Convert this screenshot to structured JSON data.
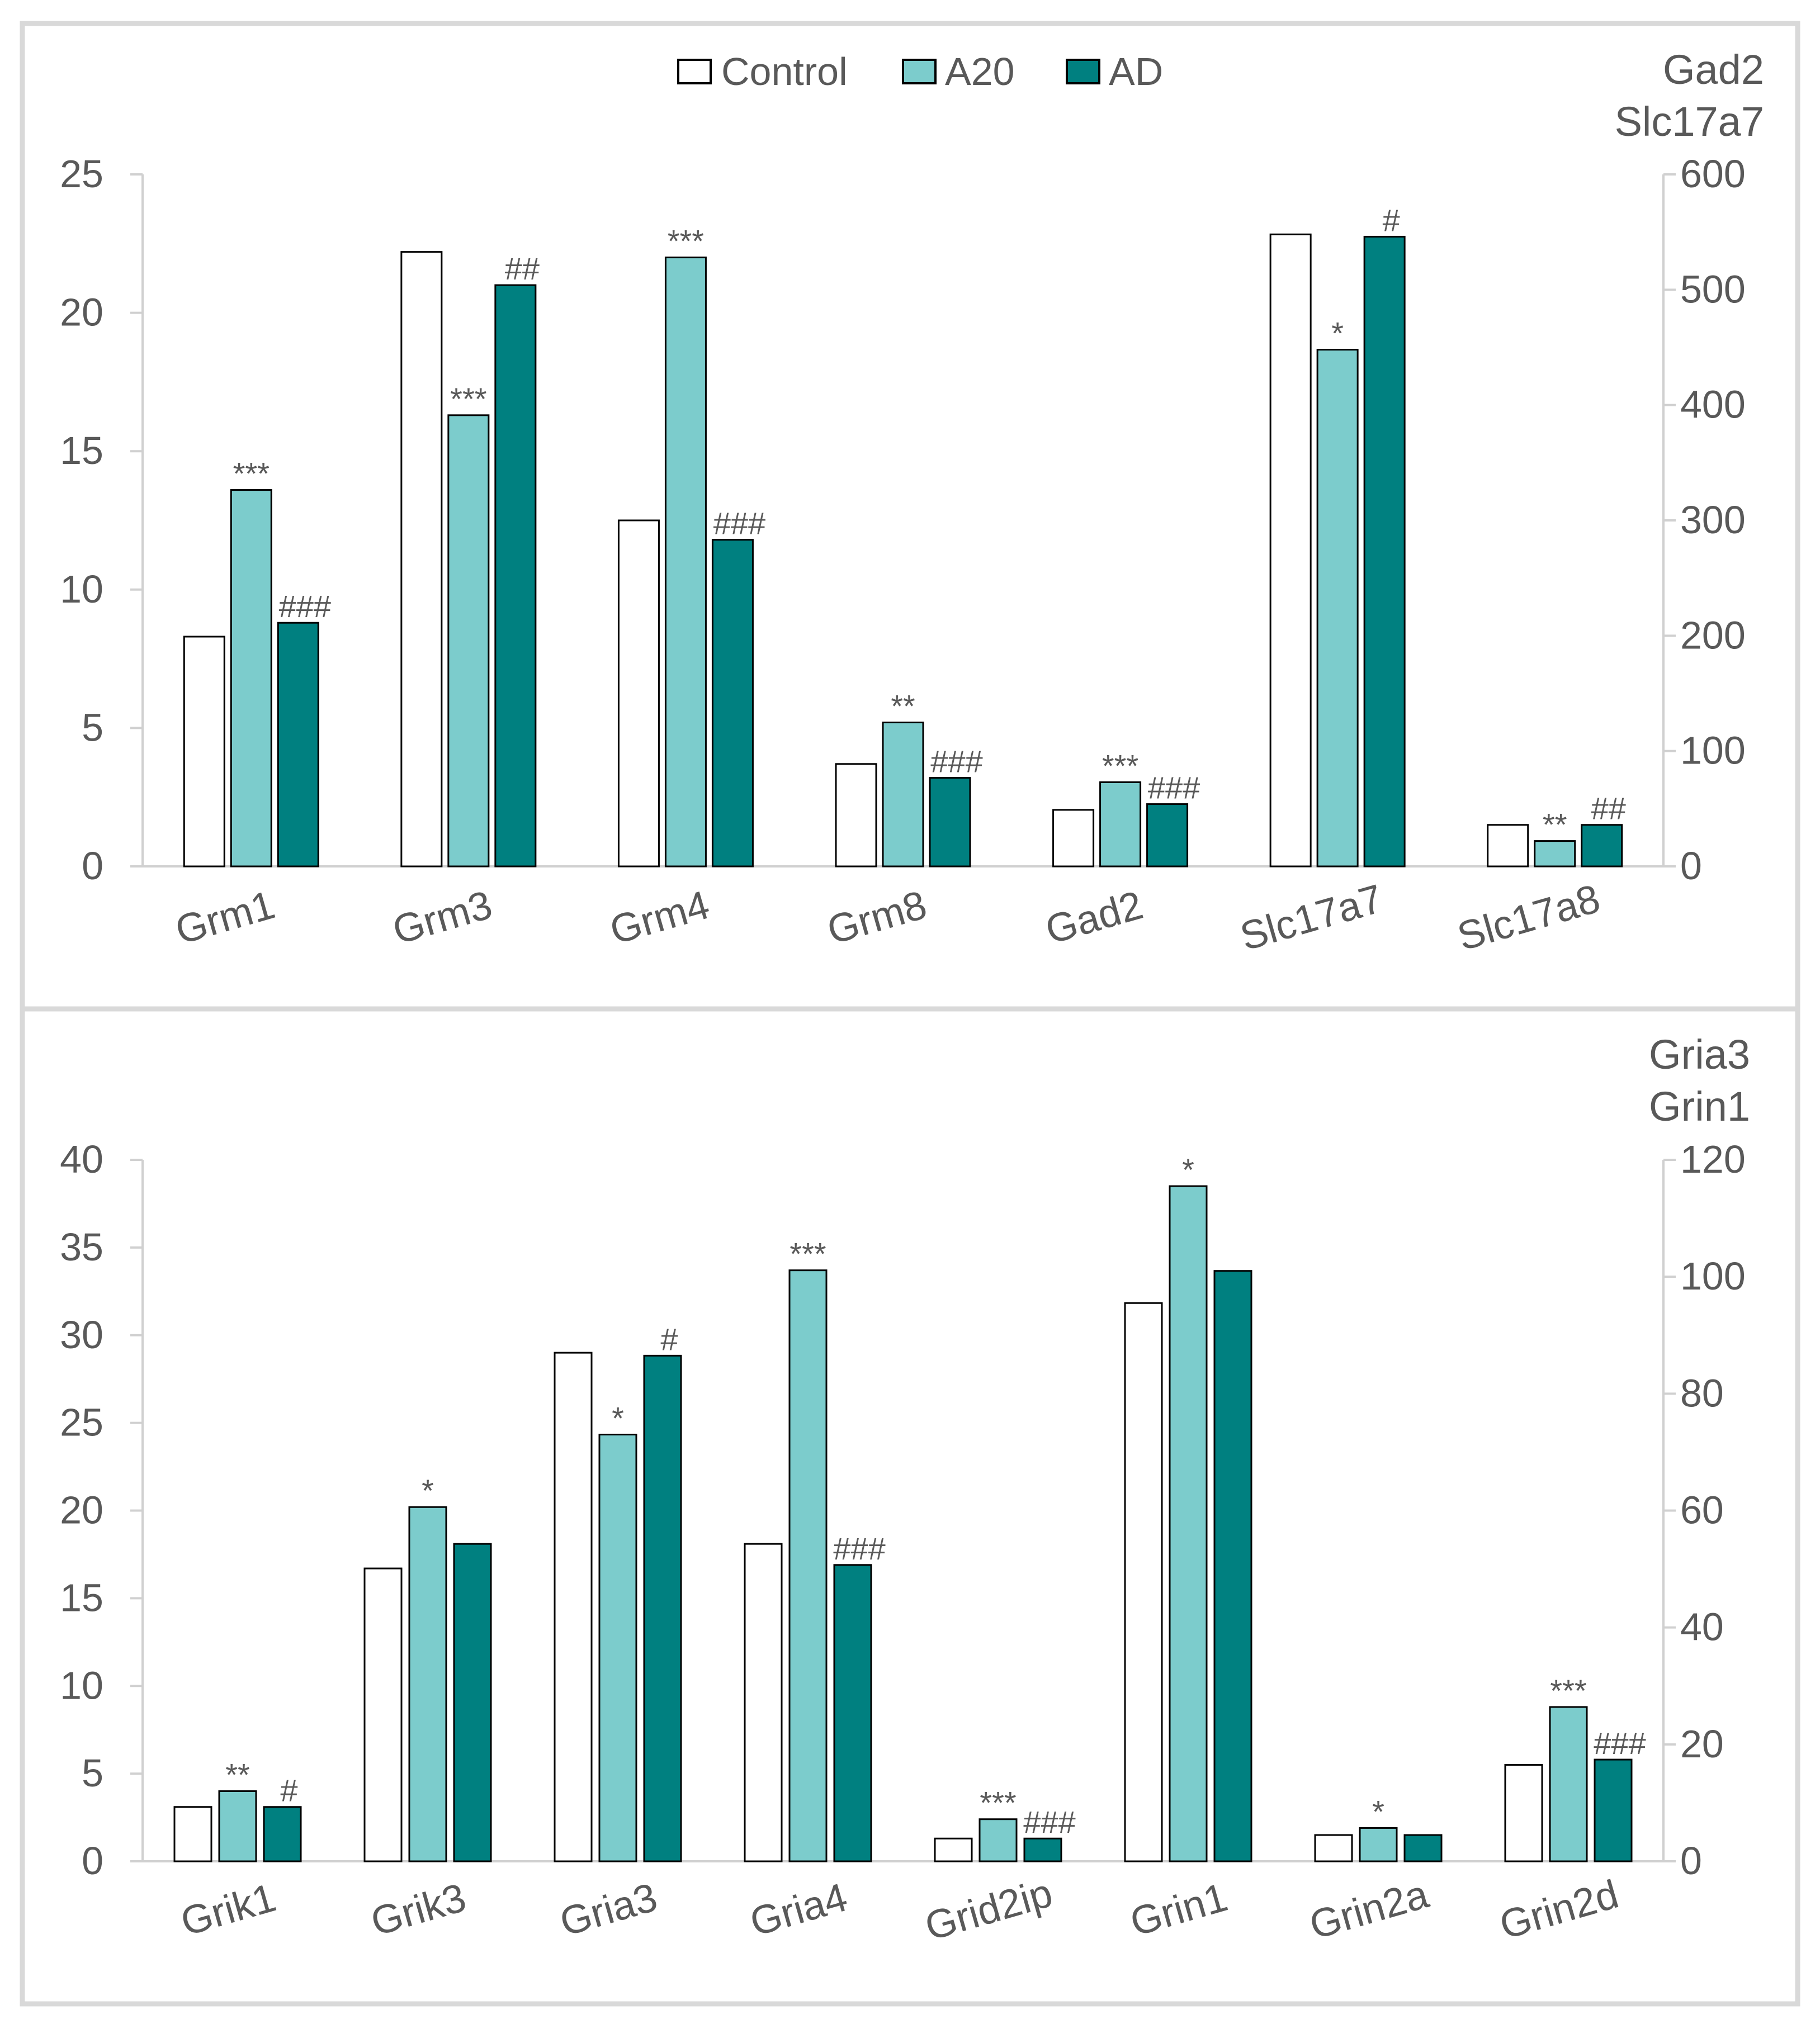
{
  "legend": [
    {
      "name": "Control",
      "color": "#ffffff"
    },
    {
      "name": "A20",
      "color": "#7ccccc"
    },
    {
      "name": "AD",
      "color": "#008080"
    }
  ],
  "chart_data": [
    {
      "type": "bar",
      "panel": "top",
      "categories": [
        "Grm1",
        "Grm3",
        "Grm4",
        "Grm8",
        "Gad2",
        "Slc17a7",
        "Slc17a8"
      ],
      "series": [
        {
          "name": "Control",
          "values": [
            8.3,
            22.2,
            12.5,
            3.7,
            49,
            548,
            36
          ]
        },
        {
          "name": "A20",
          "values": [
            13.6,
            16.3,
            22.0,
            5.2,
            73,
            448,
            22
          ]
        },
        {
          "name": "AD",
          "values": [
            8.8,
            21.0,
            11.8,
            3.2,
            54,
            546,
            36
          ]
        }
      ],
      "secondary_axis_categories": [
        "Gad2",
        "Slc17a7",
        "Slc17a8"
      ],
      "significance": [
        [
          "",
          "***",
          "###"
        ],
        [
          "",
          "***",
          "##"
        ],
        [
          "",
          "***",
          "###"
        ],
        [
          "",
          "**",
          "###"
        ],
        [
          "",
          "***",
          "###"
        ],
        [
          "",
          "*",
          "#"
        ],
        [
          "",
          "**",
          "##"
        ]
      ],
      "ylim": [
        0,
        25
      ],
      "yticks": [
        0,
        5,
        10,
        15,
        20,
        25
      ],
      "y2lim": [
        0,
        600
      ],
      "y2ticks": [
        0,
        100,
        200,
        300,
        400,
        500,
        600
      ],
      "y2label": [
        "Gad2",
        "Slc17a7"
      ]
    },
    {
      "type": "bar",
      "panel": "bottom",
      "categories": [
        "Grik1",
        "Grik3",
        "Gria3",
        "Gria4",
        "Grid2ip",
        "Grin1",
        "Grin2a",
        "Grin2d"
      ],
      "series": [
        {
          "name": "Control",
          "values": [
            3.1,
            16.7,
            87,
            18.1,
            1.3,
            95.5,
            1.5,
            5.5
          ]
        },
        {
          "name": "A20",
          "values": [
            4.0,
            20.2,
            73,
            33.7,
            2.4,
            115.5,
            1.9,
            8.8
          ]
        },
        {
          "name": "AD",
          "values": [
            3.1,
            18.1,
            86.5,
            16.9,
            1.3,
            101,
            1.5,
            5.8
          ]
        }
      ],
      "secondary_axis_categories": [
        "Gria3",
        "Grin1"
      ],
      "significance": [
        [
          "",
          "**",
          "#"
        ],
        [
          "",
          "*",
          ""
        ],
        [
          "",
          "*",
          "#"
        ],
        [
          "",
          "***",
          "###"
        ],
        [
          "",
          "***",
          "###"
        ],
        [
          "",
          "*",
          ""
        ],
        [
          "",
          "*",
          ""
        ],
        [
          "",
          "***",
          "###"
        ]
      ],
      "ylim": [
        0,
        40
      ],
      "yticks": [
        0,
        5,
        10,
        15,
        20,
        25,
        30,
        35,
        40
      ],
      "y2lim": [
        0,
        120
      ],
      "y2ticks": [
        0,
        20,
        40,
        60,
        80,
        100,
        120
      ],
      "y2label": [
        "Gria3",
        "Grin1"
      ]
    }
  ]
}
